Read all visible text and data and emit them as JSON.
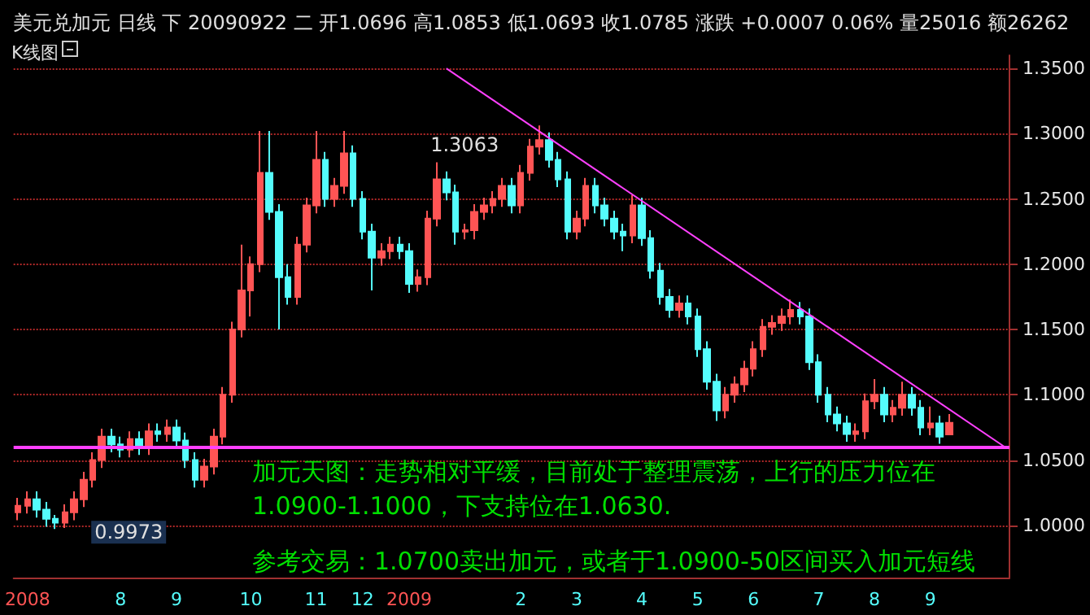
{
  "chart_data": {
    "type": "candlestick",
    "title": "美元兑加元 日线 下 20090922 二 开1.0696 高1.0853 低1.0693 收1.0785 涨跌 +0.0007 0.06% 量25016 额26262",
    "subtitle": "K线图",
    "categories": [
      null,
      "2008",
      null,
      null,
      null,
      null,
      null,
      null,
      null,
      null,
      null,
      "8",
      null,
      null,
      null,
      null,
      null,
      "9",
      null,
      null,
      null,
      null,
      null,
      null,
      null,
      "10",
      null,
      null,
      null,
      null,
      null,
      null,
      "11",
      null,
      null,
      null,
      null,
      "12",
      null,
      null,
      null,
      null,
      "2009",
      null,
      null,
      null,
      null,
      null,
      null,
      null,
      null,
      null,
      null,
      null,
      "2",
      null,
      null,
      null,
      null,
      null,
      "3",
      null,
      null,
      null,
      null,
      null,
      null,
      "4",
      null,
      null,
      null,
      null,
      null,
      "5",
      null,
      null,
      null,
      null,
      null,
      "6",
      null,
      null,
      null,
      null,
      null,
      null,
      "7",
      null,
      null,
      null,
      null,
      null,
      "8",
      null,
      null,
      null,
      null,
      null,
      "9",
      null,
      null,
      null,
      null,
      null,
      null,
      null,
      null
    ],
    "series": [
      {
        "ohlc": [
          [
            1.01,
            1.021,
            1.004,
            1.015
          ],
          [
            1.015,
            1.026,
            1.009,
            1.02
          ],
          [
            1.02,
            1.026,
            1.006,
            1.012
          ],
          [
            1.012,
            1.018,
            0.999,
            1.005
          ],
          [
            1.005,
            1.008,
            0.9973,
            1.002
          ],
          [
            1.002,
            1.016,
            0.998,
            1.01
          ],
          [
            1.01,
            1.026,
            1.004,
            1.02
          ],
          [
            1.02,
            1.041,
            1.014,
            1.035
          ],
          [
            1.035,
            1.056,
            1.029,
            1.05
          ],
          [
            1.05,
            1.074,
            1.044,
            1.068
          ],
          [
            1.068,
            1.074,
            1.056,
            1.062
          ],
          [
            1.062,
            1.068,
            1.052,
            1.058
          ],
          [
            1.058,
            1.072,
            1.052,
            1.066
          ],
          [
            1.066,
            1.072,
            1.054,
            1.06
          ],
          [
            1.06,
            1.078,
            1.054,
            1.072
          ],
          [
            1.072,
            1.078,
            1.064,
            1.07
          ],
          [
            1.07,
            1.081,
            1.064,
            1.075
          ],
          [
            1.075,
            1.081,
            1.059,
            1.065
          ],
          [
            1.065,
            1.071,
            1.044,
            1.05
          ],
          [
            1.05,
            1.056,
            1.029,
            1.035
          ],
          [
            1.035,
            1.051,
            1.029,
            1.045
          ],
          [
            1.045,
            1.074,
            1.039,
            1.068
          ],
          [
            1.068,
            1.106,
            1.062,
            1.1
          ],
          [
            1.1,
            1.156,
            1.094,
            1.15
          ],
          [
            1.15,
            1.215,
            1.144,
            1.18
          ],
          [
            1.18,
            1.206,
            1.16,
            1.2
          ],
          [
            1.2,
            1.302,
            1.194,
            1.27
          ],
          [
            1.27,
            1.302,
            1.234,
            1.24
          ],
          [
            1.24,
            1.246,
            1.15,
            1.19
          ],
          [
            1.19,
            1.2,
            1.169,
            1.175
          ],
          [
            1.175,
            1.221,
            1.169,
            1.215
          ],
          [
            1.215,
            1.251,
            1.209,
            1.245
          ],
          [
            1.245,
            1.302,
            1.239,
            1.28
          ],
          [
            1.28,
            1.286,
            1.244,
            1.25
          ],
          [
            1.25,
            1.266,
            1.244,
            1.26
          ],
          [
            1.26,
            1.302,
            1.254,
            1.285
          ],
          [
            1.285,
            1.291,
            1.244,
            1.25
          ],
          [
            1.25,
            1.256,
            1.219,
            1.225
          ],
          [
            1.225,
            1.231,
            1.18,
            1.205
          ],
          [
            1.205,
            1.216,
            1.199,
            1.21
          ],
          [
            1.21,
            1.221,
            1.204,
            1.215
          ],
          [
            1.215,
            1.221,
            1.204,
            1.21
          ],
          [
            1.21,
            1.216,
            1.178,
            1.185
          ],
          [
            1.185,
            1.196,
            1.179,
            1.19
          ],
          [
            1.19,
            1.241,
            1.184,
            1.235
          ],
          [
            1.235,
            1.278,
            1.229,
            1.265
          ],
          [
            1.265,
            1.271,
            1.249,
            1.255
          ],
          [
            1.255,
            1.261,
            1.215,
            1.225
          ],
          [
            1.225,
            1.231,
            1.219,
            1.226
          ],
          [
            1.226,
            1.246,
            1.219,
            1.24
          ],
          [
            1.24,
            1.251,
            1.234,
            1.245
          ],
          [
            1.245,
            1.256,
            1.239,
            1.25
          ],
          [
            1.25,
            1.266,
            1.244,
            1.26
          ],
          [
            1.26,
            1.266,
            1.239,
            1.245
          ],
          [
            1.245,
            1.276,
            1.239,
            1.27
          ],
          [
            1.27,
            1.296,
            1.264,
            1.29
          ],
          [
            1.29,
            1.3063,
            1.284,
            1.295
          ],
          [
            1.295,
            1.301,
            1.274,
            1.28
          ],
          [
            1.28,
            1.286,
            1.259,
            1.265
          ],
          [
            1.265,
            1.271,
            1.219,
            1.225
          ],
          [
            1.225,
            1.241,
            1.219,
            1.235
          ],
          [
            1.235,
            1.266,
            1.229,
            1.26
          ],
          [
            1.26,
            1.266,
            1.239,
            1.245
          ],
          [
            1.245,
            1.251,
            1.229,
            1.235
          ],
          [
            1.235,
            1.241,
            1.219,
            1.225
          ],
          [
            1.225,
            1.231,
            1.21,
            1.222
          ],
          [
            1.222,
            1.253,
            1.216,
            1.245
          ],
          [
            1.245,
            1.251,
            1.214,
            1.22
          ],
          [
            1.22,
            1.226,
            1.189,
            1.195
          ],
          [
            1.195,
            1.201,
            1.169,
            1.175
          ],
          [
            1.175,
            1.181,
            1.159,
            1.165
          ],
          [
            1.165,
            1.176,
            1.159,
            1.17
          ],
          [
            1.17,
            1.176,
            1.154,
            1.16
          ],
          [
            1.16,
            1.166,
            1.129,
            1.135
          ],
          [
            1.135,
            1.141,
            1.104,
            1.11
          ],
          [
            1.11,
            1.116,
            1.08,
            1.088
          ],
          [
            1.088,
            1.106,
            1.082,
            1.1
          ],
          [
            1.1,
            1.114,
            1.094,
            1.108
          ],
          [
            1.108,
            1.126,
            1.102,
            1.12
          ],
          [
            1.12,
            1.141,
            1.114,
            1.135
          ],
          [
            1.135,
            1.158,
            1.129,
            1.152
          ],
          [
            1.152,
            1.161,
            1.146,
            1.155
          ],
          [
            1.155,
            1.166,
            1.149,
            1.16
          ],
          [
            1.16,
            1.173,
            1.154,
            1.165
          ],
          [
            1.165,
            1.171,
            1.154,
            1.16
          ],
          [
            1.16,
            1.166,
            1.119,
            1.125
          ],
          [
            1.125,
            1.131,
            1.094,
            1.1
          ],
          [
            1.1,
            1.106,
            1.079,
            1.085
          ],
          [
            1.085,
            1.091,
            1.072,
            1.078
          ],
          [
            1.078,
            1.084,
            1.064,
            1.07
          ],
          [
            1.07,
            1.078,
            1.064,
            1.072
          ],
          [
            1.072,
            1.101,
            1.066,
            1.095
          ],
          [
            1.095,
            1.112,
            1.089,
            1.1
          ],
          [
            1.1,
            1.106,
            1.079,
            1.085
          ],
          [
            1.085,
            1.096,
            1.079,
            1.09
          ],
          [
            1.09,
            1.11,
            1.084,
            1.1
          ],
          [
            1.1,
            1.106,
            1.084,
            1.09
          ],
          [
            1.09,
            1.096,
            1.069,
            1.075
          ],
          [
            1.075,
            1.091,
            1.069,
            1.078
          ],
          [
            1.078,
            1.084,
            1.0625,
            1.068
          ],
          [
            1.0696,
            1.0853,
            1.0693,
            1.0785
          ],
          null,
          null,
          null,
          null,
          null,
          null
        ],
        "colors": [
          "#ff5454",
          "#ff5454",
          "#54fcfc",
          "#54fcfc",
          "#54fcfc",
          "#ff5454",
          "#ff5454",
          "#ff5454",
          "#ff5454",
          "#ff5454",
          "#54fcfc",
          "#54fcfc",
          "#ff5454",
          "#54fcfc",
          "#ff5454",
          "#54fcfc",
          "#ff5454",
          "#54fcfc",
          "#54fcfc",
          "#54fcfc",
          "#ff5454",
          "#ff5454",
          "#ff5454",
          "#ff5454",
          "#ff5454",
          "#ff5454",
          "#ff5454",
          "#54fcfc",
          "#54fcfc",
          "#54fcfc",
          "#ff5454",
          "#ff5454",
          "#ff5454",
          "#54fcfc",
          "#ff5454",
          "#ff5454",
          "#54fcfc",
          "#54fcfc",
          "#54fcfc",
          "#ff5454",
          "#ff5454",
          "#54fcfc",
          "#54fcfc",
          "#ff5454",
          "#ff5454",
          "#ff5454",
          "#54fcfc",
          "#54fcfc",
          "#ff5454",
          "#ff5454",
          "#ff5454",
          "#ff5454",
          "#ff5454",
          "#54fcfc",
          "#ff5454",
          "#ff5454",
          "#ff5454",
          "#54fcfc",
          "#54fcfc",
          "#54fcfc",
          "#ff5454",
          "#ff5454",
          "#54fcfc",
          "#54fcfc",
          "#54fcfc",
          "#54fcfc",
          "#ff5454",
          "#54fcfc",
          "#54fcfc",
          "#54fcfc",
          "#54fcfc",
          "#ff5454",
          "#54fcfc",
          "#54fcfc",
          "#54fcfc",
          "#54fcfc",
          "#ff5454",
          "#ff5454",
          "#ff5454",
          "#ff5454",
          "#ff5454",
          "#ff5454",
          "#ff5454",
          "#ff5454",
          "#54fcfc",
          "#54fcfc",
          "#54fcfc",
          "#54fcfc",
          "#54fcfc",
          "#54fcfc",
          "#ff5454",
          "#ff5454",
          "#ff5454",
          "#54fcfc",
          "#ff5454",
          "#ff5454",
          "#54fcfc",
          "#54fcfc",
          "#ff5454",
          "#54fcfc",
          "#ff5454",
          null,
          null,
          null,
          null,
          null,
          null
        ]
      },
      {
        "type": "line",
        "color": "#ff40ff",
        "values": [
          null,
          null,
          null,
          null,
          null,
          null,
          null,
          null,
          null,
          null,
          null,
          null,
          null,
          null,
          null,
          null,
          null,
          null,
          null,
          null,
          null,
          null,
          null,
          null,
          null,
          null,
          null,
          null,
          null,
          null,
          null,
          null,
          null,
          null,
          null,
          null,
          null,
          null,
          null,
          null,
          null,
          null,
          null,
          null,
          null,
          null,
          1.35,
          null,
          null,
          null,
          null,
          null,
          null,
          null,
          null,
          null,
          null,
          null,
          null,
          null,
          null,
          null,
          null,
          null,
          null,
          null,
          null,
          null,
          null,
          null,
          null,
          null,
          null,
          null,
          null,
          null,
          null,
          null,
          null,
          null,
          null,
          null,
          null,
          null,
          null,
          null,
          null,
          null,
          null,
          null,
          null,
          null,
          null,
          null,
          null,
          null,
          null,
          null,
          null,
          null,
          null,
          null,
          null,
          null,
          null,
          null,
          1.06
        ]
      }
    ],
    "ylim": [
      0.96,
      1.36
    ],
    "yticks": [
      {
        "value": 1.0,
        "label": "1.0000"
      },
      {
        "value": 1.05,
        "label": "1.0500"
      },
      {
        "value": 1.1,
        "label": "1.1000"
      },
      {
        "value": 1.15,
        "label": "1.1500"
      },
      {
        "value": 1.2,
        "label": "1.2000"
      },
      {
        "value": 1.25,
        "label": "1.2500"
      },
      {
        "value": 1.3,
        "label": "1.3000"
      },
      {
        "value": 1.35,
        "label": "1.3500"
      }
    ],
    "grid": "y",
    "ref_lines": [
      {
        "axis": "y",
        "value": 1.06,
        "color": "#ff40ff"
      }
    ],
    "annotations": [
      "1.3063",
      "0.9973",
      "加元天图：走势相对平缓，目前处于整理震荡，上行的压力位在",
      "1.0900-1.1000，下支持位在1.0630.",
      "参考交易：1.0700卖出加元，或者于1.0900-50区间买入加元短线"
    ]
  }
}
